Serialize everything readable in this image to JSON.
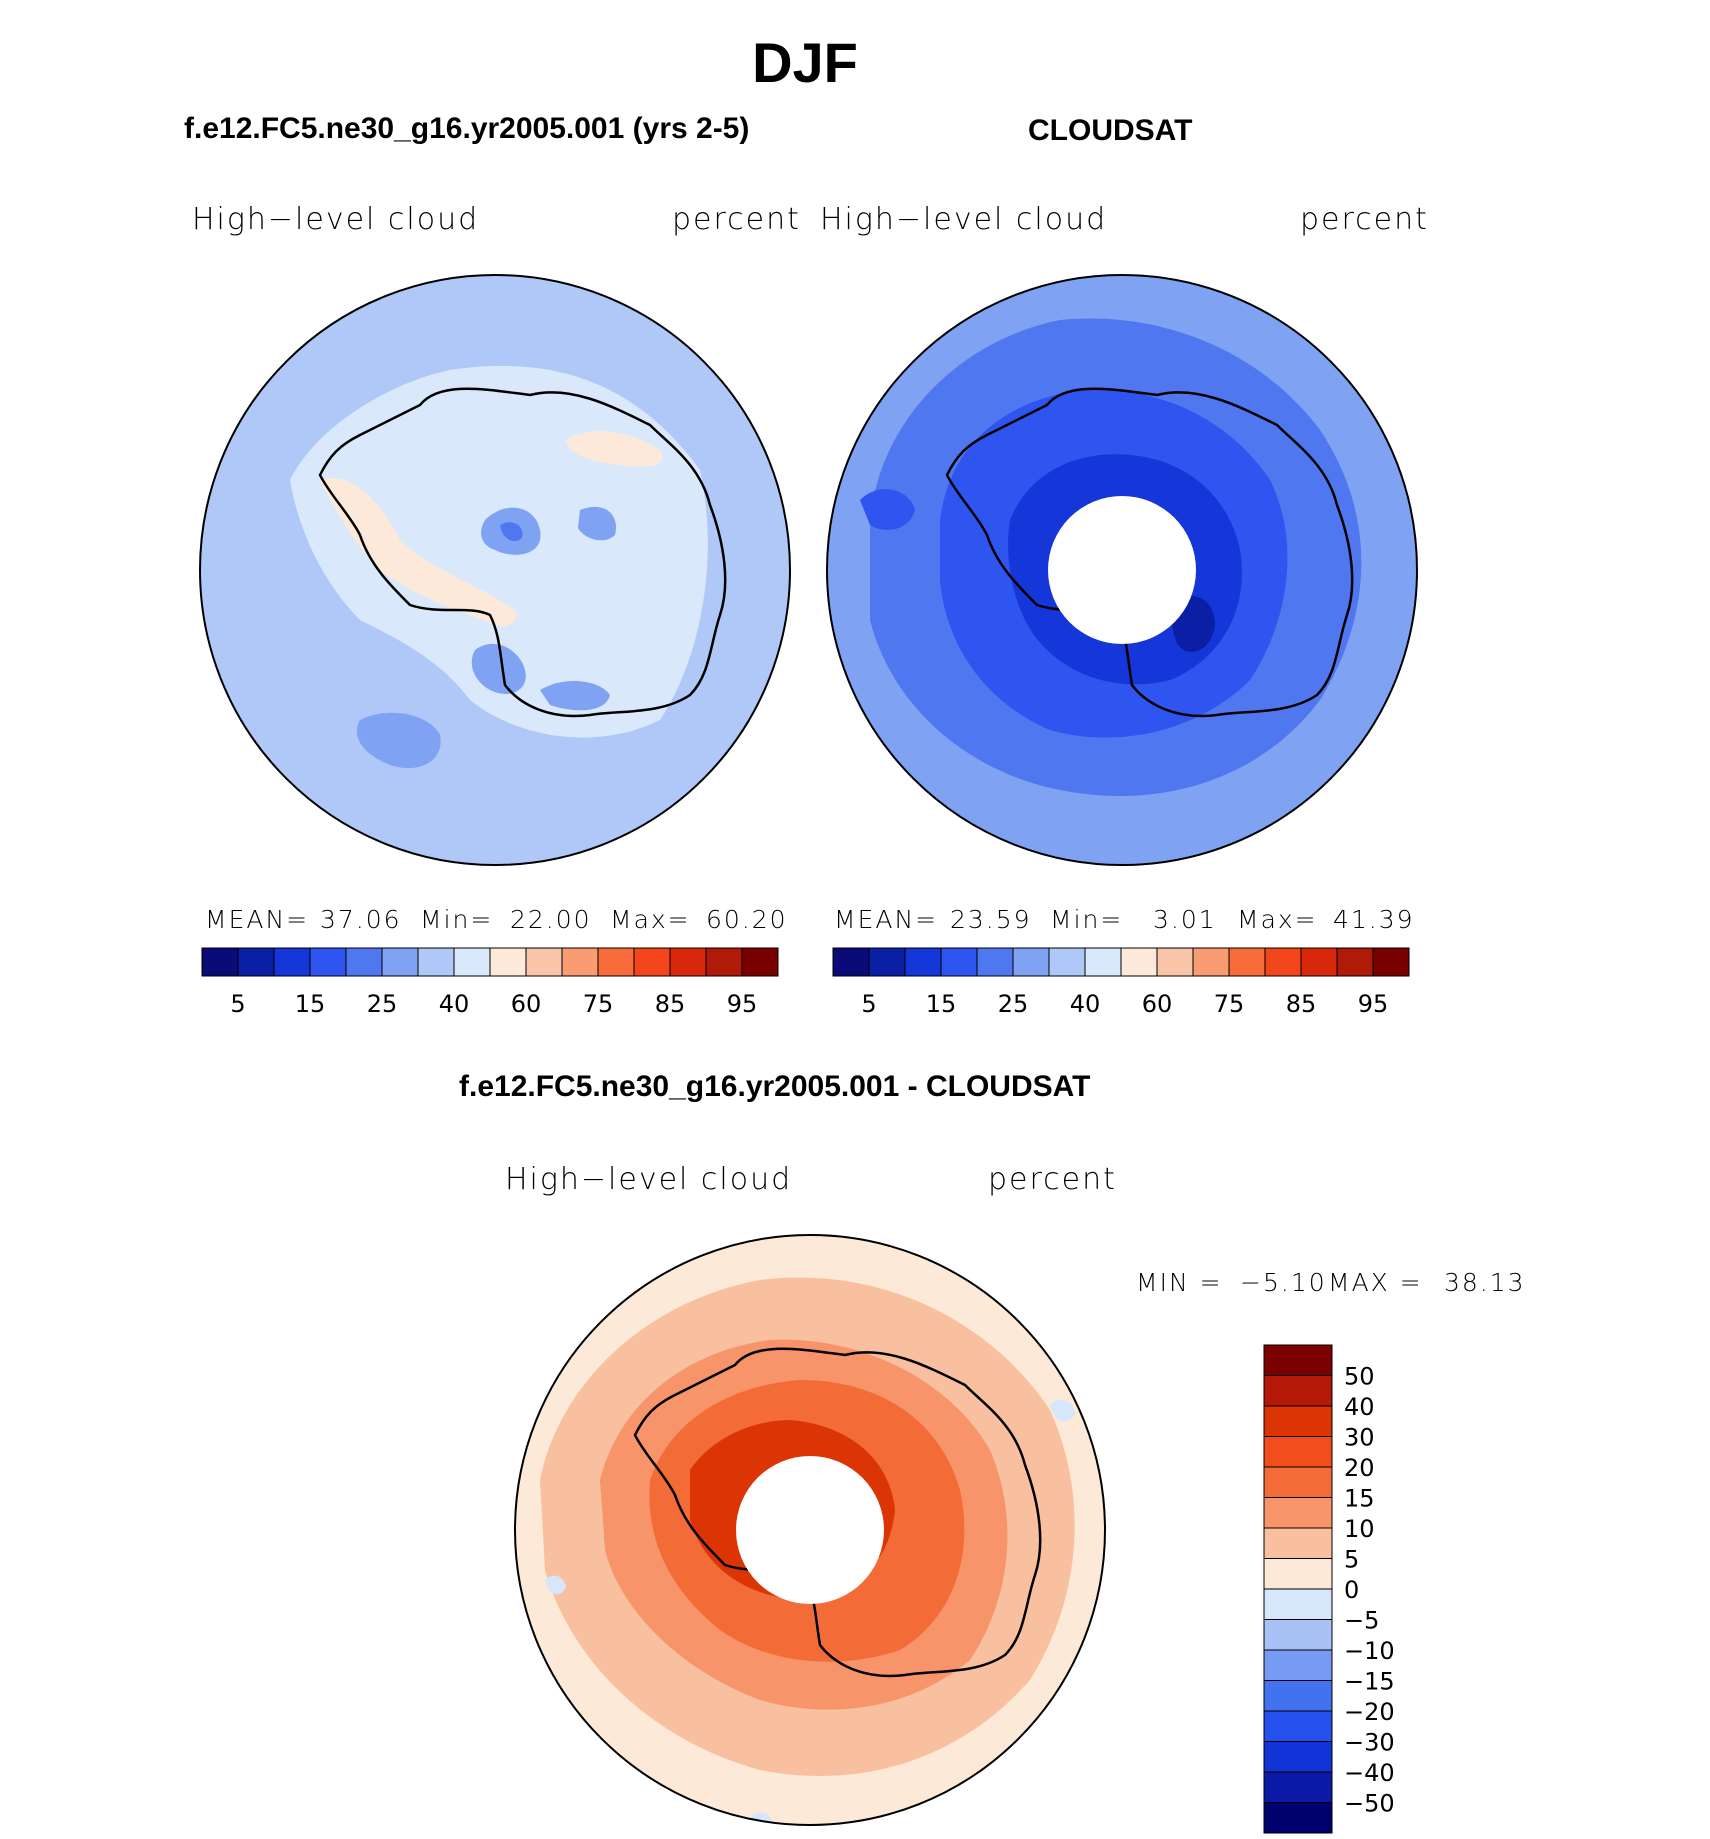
{
  "page_title": "DJF",
  "panels": {
    "model": {
      "title": "f.e12.FC5.ne30_g16.yr2005.001 (yrs 2-5)",
      "left_label": "High−level cloud",
      "right_label": "percent",
      "stats": {
        "mean_label": "MEAN=",
        "mean": "37.06",
        "min_label": "Min=",
        "min": "22.00",
        "max_label": "Max=",
        "max": "60.20"
      }
    },
    "obs": {
      "title": "CLOUDSAT",
      "left_label": "High−level cloud",
      "right_label": "percent",
      "stats": {
        "mean_label": "MEAN=",
        "mean": "23.59",
        "min_label": "Min=",
        "min": "3.01",
        "max_label": "Max=",
        "max": "41.39"
      }
    },
    "diff": {
      "title": "f.e12.FC5.ne30_g16.yr2005.001 - CLOUDSAT",
      "left_label": "High−level cloud",
      "right_label": "percent",
      "stats": {
        "min_label": "MIN =",
        "min": "−5.10",
        "max_label": "MAX =",
        "max": "38.13"
      }
    }
  },
  "colors": {
    "abs_scale": [
      "#0a0a78",
      "#0b1ea6",
      "#1536d8",
      "#2e55ef",
      "#4f78f0",
      "#7fa2f2",
      "#b0c8f7",
      "#d9e9fb",
      "#fde9da",
      "#f9c5a8",
      "#f99c72",
      "#f86b3b",
      "#f3461c",
      "#d8280c",
      "#b01a08",
      "#7a0000"
    ],
    "diff_scale": [
      "#00006e",
      "#0a1aa6",
      "#1233d6",
      "#2450ed",
      "#4272f0",
      "#779bf2",
      "#a8c2f5",
      "#d6e7fb",
      "#fde9d8",
      "#f9c0a0",
      "#f7946a",
      "#f36c38",
      "#f14e1c",
      "#dc3505",
      "#b41806",
      "#7d0000"
    ],
    "model_field": {
      "ocean": "#b0c8f7",
      "ice_lighter": "#d9e9fb",
      "warm": "#fde9da",
      "low": "#7fa2f2",
      "lowest": "#4f78f0"
    },
    "obs_field": {
      "outer": "#7fa2f2",
      "mid": "#4f78f0",
      "inner": "#2e55ef",
      "core": "#1536d8",
      "deep": "#0b1ea6"
    },
    "diff_field": {
      "outer": "#fde9d8",
      "mid": "#f9c0a0",
      "inner": "#f7946a",
      "core": "#f36c38",
      "deep": "#dc3505"
    }
  },
  "chart_data": [
    {
      "type": "heatmap",
      "title": "f.e12.FC5.ne30_g16.yr2005.001 (yrs 2-5)",
      "variable": "High−level cloud",
      "units": "percent",
      "projection": "south-polar-stereographic",
      "colorbar_ticks": [
        "5",
        "15",
        "25",
        "40",
        "60",
        "75",
        "85",
        "95"
      ],
      "levels": [
        5,
        10,
        15,
        20,
        25,
        30,
        40,
        50,
        60,
        70,
        75,
        80,
        85,
        90,
        95
      ],
      "mean": 37.06,
      "min": 22.0,
      "max": 60.2
    },
    {
      "type": "heatmap",
      "title": "CLOUDSAT",
      "variable": "High−level cloud",
      "units": "percent",
      "projection": "south-polar-stereographic",
      "colorbar_ticks": [
        "5",
        "15",
        "25",
        "40",
        "60",
        "75",
        "85",
        "95"
      ],
      "levels": [
        5,
        10,
        15,
        20,
        25,
        30,
        40,
        50,
        60,
        70,
        75,
        80,
        85,
        90,
        95
      ],
      "mean": 23.59,
      "min": 3.01,
      "max": 41.39
    },
    {
      "type": "heatmap",
      "title": "f.e12.FC5.ne30_g16.yr2005.001 - CLOUDSAT",
      "variable": "High−level cloud",
      "units": "percent",
      "projection": "south-polar-stereographic",
      "colorbar_ticks": [
        "50",
        "40",
        "30",
        "20",
        "15",
        "10",
        "5",
        "0",
        "−5",
        "−10",
        "−15",
        "−20",
        "−30",
        "−40",
        "−50"
      ],
      "min": -5.1,
      "max": 38.13
    }
  ]
}
